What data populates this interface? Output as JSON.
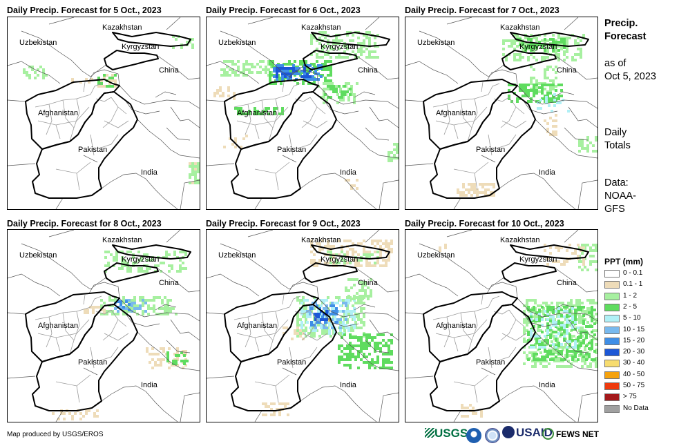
{
  "panels": [
    {
      "title": "Daily Precip. Forecast for 5 Oct., 2023"
    },
    {
      "title": "Daily Precip. Forecast for 6 Oct., 2023"
    },
    {
      "title": "Daily Precip. Forecast for 7 Oct., 2023"
    },
    {
      "title": "Daily Precip. Forecast for 8 Oct., 2023"
    },
    {
      "title": "Daily Precip. Forecast for 9 Oct., 2023"
    },
    {
      "title": "Daily Precip. Forecast for 10 Oct., 2023"
    }
  ],
  "labels": {
    "kazakhstan": "Kazakhstan",
    "uzbekistan": "Uzbekistan",
    "kyrgyzstan": "Kyrgyzstan",
    "china": "China",
    "afghanistan": "Afghanistan",
    "pakistan": "Pakistan",
    "india": "India"
  },
  "side": {
    "title1": "Precip.",
    "title2": "Forecast",
    "asof1": "as of",
    "asof2": "Oct 5, 2023",
    "daily1": "Daily",
    "daily2": "Totals",
    "data1": "Data:",
    "data2": "NOAA-",
    "data3": "GFS"
  },
  "legend": {
    "title": "PPT (mm)",
    "items": [
      {
        "label": "0 - 0.1",
        "color": "#ffffff"
      },
      {
        "label": "0.1 - 1",
        "color": "#eedcb9"
      },
      {
        "label": "1 - 2",
        "color": "#a7f0a0"
      },
      {
        "label": "2 - 5",
        "color": "#5fdc5f"
      },
      {
        "label": "5 - 10",
        "color": "#b0f0f6"
      },
      {
        "label": "10 - 15",
        "color": "#78b9ee"
      },
      {
        "label": "15 - 20",
        "color": "#3f8ee6"
      },
      {
        "label": "20 - 30",
        "color": "#1c57d6"
      },
      {
        "label": "30 - 40",
        "color": "#f7dc6f"
      },
      {
        "label": "40 - 50",
        "color": "#f5a20d"
      },
      {
        "label": "50 - 75",
        "color": "#ee3a0d"
      },
      {
        "label": "> 75",
        "color": "#a3191b"
      },
      {
        "label": "No Data",
        "color": "#a0a0a0"
      }
    ]
  },
  "credit": "Map produced by USGS/EROS",
  "logos": {
    "usgs": "USGS",
    "usaid": "USAID",
    "fewsnet": "FEWS NET"
  }
}
